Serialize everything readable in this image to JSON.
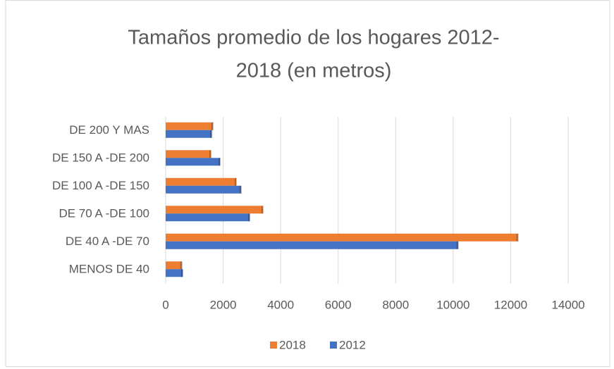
{
  "chart_data": {
    "type": "bar",
    "orientation": "horizontal",
    "title": [
      "Tamaños promedio de los hogares 2012-",
      "2018 (en metros)"
    ],
    "categories": [
      "MENOS DE 40",
      "DE 40 A -DE 70",
      "DE 70 A -DE 100",
      "DE 100 A -DE 150",
      "DE 150 A -DE 200",
      "DE 200 Y MAS"
    ],
    "series": [
      {
        "name": "2018",
        "color": "#ed7d31",
        "values": [
          560,
          12250,
          3380,
          2450,
          1570,
          1640
        ]
      },
      {
        "name": "2012",
        "color": "#4472c4",
        "values": [
          590,
          10170,
          2920,
          2620,
          1890,
          1600
        ]
      }
    ],
    "xlim": [
      0,
      14000
    ],
    "xticks": [
      0,
      2000,
      4000,
      6000,
      8000,
      10000,
      12000,
      14000
    ],
    "grid": true,
    "legend": "bottom"
  }
}
